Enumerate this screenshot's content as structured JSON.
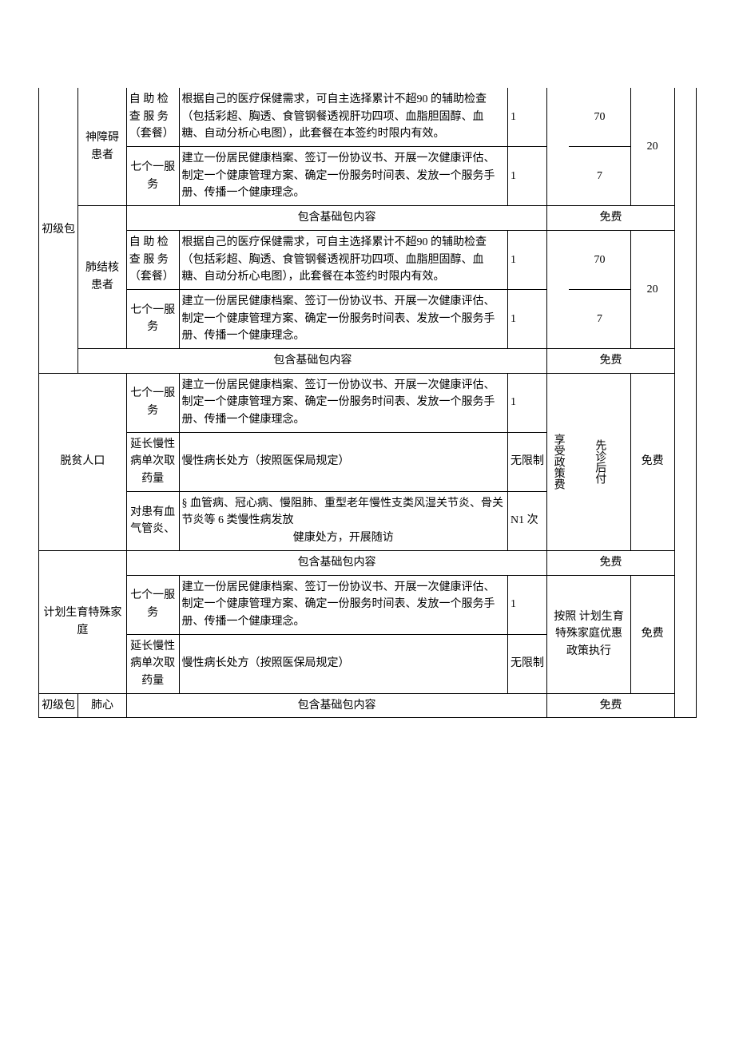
{
  "col1": {
    "primary": "初级包"
  },
  "col2": {
    "mental": "神障碍患者",
    "tb": "肺结核患者",
    "poverty": "脱贫人口",
    "family_planning": "计划生育特殊家庭",
    "lung_heart": "肺心"
  },
  "services": {
    "self_exam": {
      "name": "自 助 检查 服 务（套餐）"
    },
    "seven_one": {
      "name": "七个一服务"
    },
    "chronic_med": {
      "name": "延长慢性病单次取药量"
    },
    "chronic_visit": {
      "name": "对患有血气管炎、"
    }
  },
  "contents": {
    "self_exam": "根据自己的医疗保健需求，可自主选择累计不超90 的辅助检查（包括彩超、胸透、食管钢餐透视肝功四项、血脂胆固醇、血糖、自动分析心电图），此套餐在本签约时限内有效。",
    "seven_one": "建立一份居民健康档案、签订一份协议书、开展一次健康评估、制定一个健康管理方案、确定一份服务时间表、发放一个服务手册、传播一个健康理念。",
    "seven_one_fp": "建立一份居民健康档案、签订一份协议书、开展一次健康评估、制定一个健康管理方案、确定一份服务时间表、发放一个服务手册、传播一个健康理念。",
    "basic_package": "包含基础包内容",
    "chronic_med": "慢性病长处方（按照医保局规定）",
    "chronic_visit_prefix": "§ 血管病、冠心病、慢阻肺、重型老年慢性支类风湿关节炎、骨关节炎等 6 类慢性病发放",
    "chronic_visit_suffix": "健康处方，开展随访"
  },
  "freq": {
    "one": "1",
    "unlimited": "无限制",
    "n1": "N1 次"
  },
  "price": {
    "p70": "70",
    "p7": "7",
    "p20": "20",
    "free": "免费"
  },
  "notes": {
    "poverty_pay": "先诊后付",
    "poverty_receive": "享受政策费",
    "fp_policy": "按照 计划生育特殊家庭优惠政策执行"
  }
}
